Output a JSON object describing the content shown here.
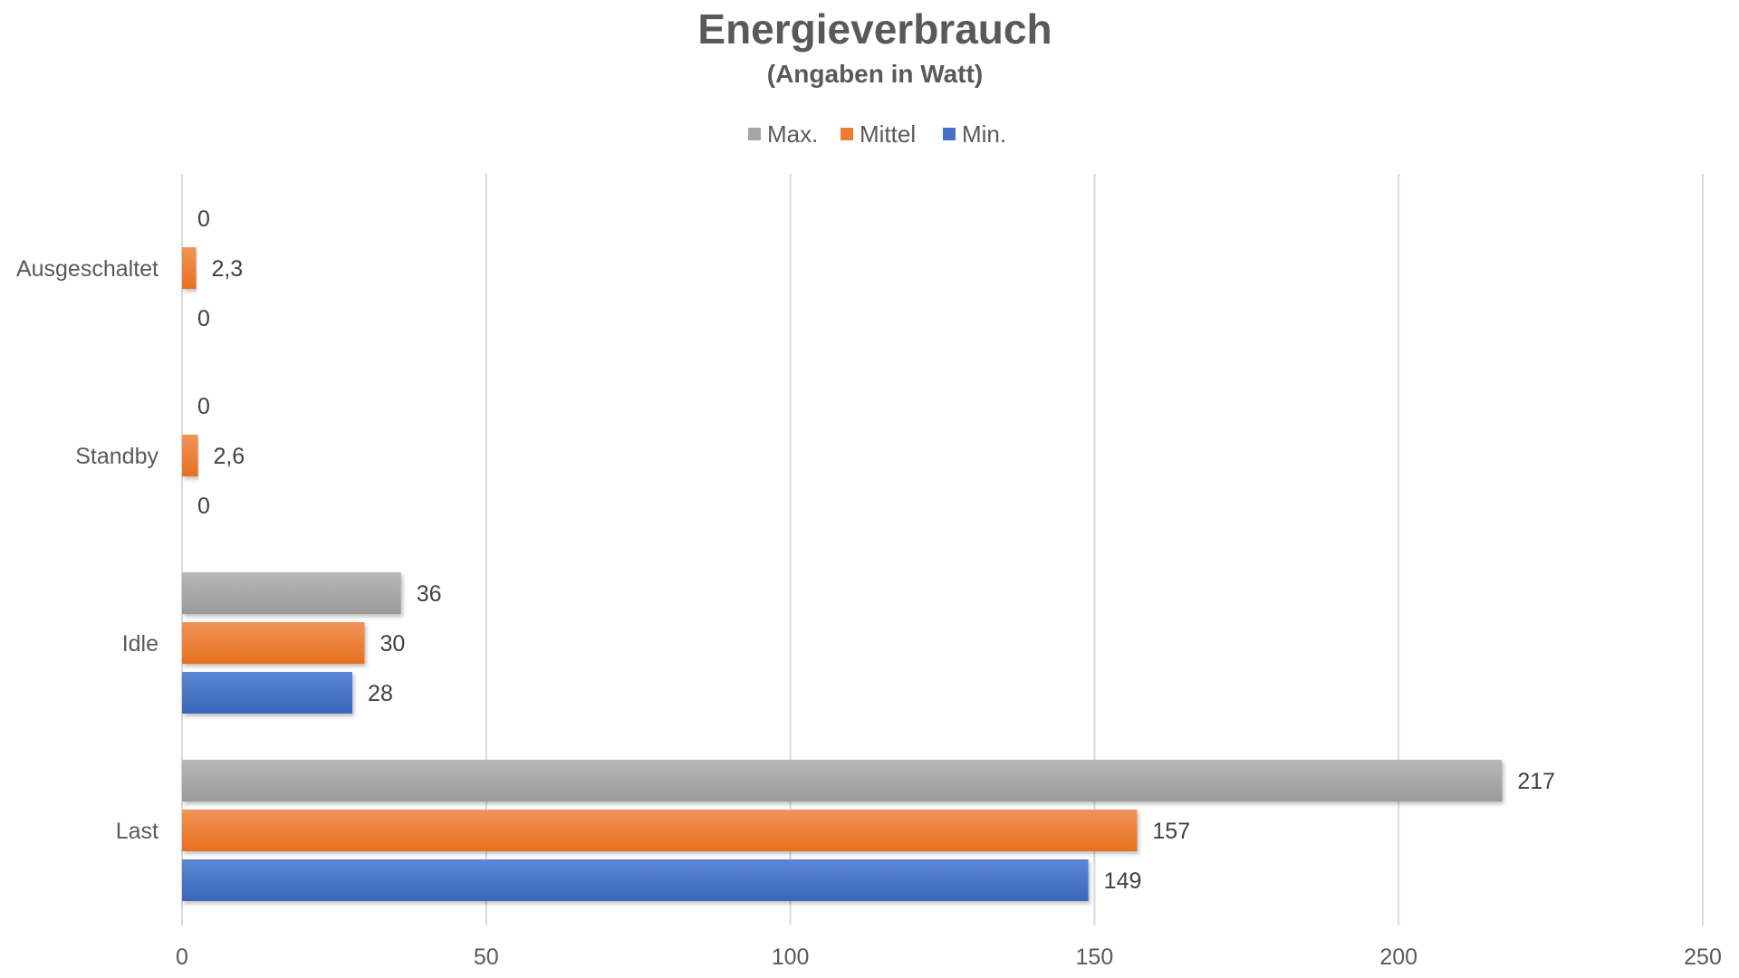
{
  "chart_data": {
    "type": "bar",
    "orientation": "horizontal",
    "title": "Energieverbrauch",
    "subtitle": "(Angaben in Watt)",
    "categories": [
      "Ausgeschaltet",
      "Standby",
      "Idle",
      "Last"
    ],
    "series": [
      {
        "name": "Max.",
        "color": "#a5a5a5",
        "values": [
          0,
          0,
          36,
          217
        ],
        "labels": [
          "0",
          "0",
          "36",
          "217"
        ]
      },
      {
        "name": "Mittel",
        "color": "#ed7d31",
        "values": [
          2.3,
          2.6,
          30,
          157
        ],
        "labels": [
          "2,3",
          "2,6",
          "30",
          "157"
        ]
      },
      {
        "name": "Min.",
        "color": "#4472c4",
        "values": [
          0,
          0,
          28,
          149
        ],
        "labels": [
          "0",
          "0",
          "28",
          "149"
        ]
      }
    ],
    "xlim": [
      0,
      250
    ],
    "xticks": [
      0,
      50,
      100,
      150,
      200,
      250
    ],
    "xtick_labels": [
      "0",
      "50",
      "100",
      "150",
      "200",
      "250"
    ],
    "xlabel": "",
    "ylabel": "",
    "grid": true,
    "legend_position": "top-center"
  }
}
